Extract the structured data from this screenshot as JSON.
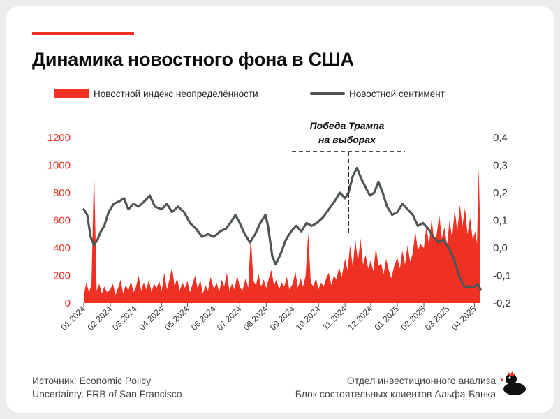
{
  "header": {
    "title": "Динамика новостного фона в США"
  },
  "legend": {
    "uncertainty_label": "Новостной индекс неопределённости",
    "sentiment_label": "Новостной сентимент"
  },
  "annotation": {
    "line1": "Победа Трампа",
    "line2": "на выборах"
  },
  "footer": {
    "source_line1": "Источник: Economic Policy",
    "source_line2": "Uncertainty, FRB of San Francisco",
    "dept_line1": "Отдел инвестиционного анализа",
    "dept_line2": "Блок состоятельных клиентов Альфа-Банка"
  },
  "colors": {
    "uncertainty": "#ef3124",
    "sentiment": "#4e5553",
    "accent": "#ef3124"
  },
  "chart_data": {
    "type": "area",
    "title": "Динамика новостного фона в США",
    "x_ticks": [
      "01.2024",
      "02.2024",
      "03.2024",
      "04.2024",
      "05.2024",
      "06.2024",
      "07.2024",
      "08.2024",
      "09.2024",
      "10.2024",
      "11.2024",
      "12.2024",
      "01.2025",
      "02.2025",
      "03.2025",
      "04.2025"
    ],
    "y_left": {
      "ticks": [
        "0",
        "200",
        "400",
        "600",
        "800",
        "1000",
        "1200"
      ],
      "range": [
        0,
        1200
      ]
    },
    "y_right": {
      "ticks": [
        "-0,2",
        "-0,1",
        "0,0",
        "0,1",
        "0,2",
        "0,3",
        "0,4"
      ],
      "range": [
        -0.2,
        0.4
      ]
    },
    "event": {
      "date": "2024-11-05",
      "label": "Победа Трампа на выборах"
    },
    "series": [
      {
        "name": "Новостной индекс неопределённости",
        "axis": "left",
        "style": "area",
        "points": [
          [
            "2024-01-01",
            60
          ],
          [
            "2024-01-04",
            150
          ],
          [
            "2024-01-07",
            80
          ],
          [
            "2024-01-10",
            130
          ],
          [
            "2024-01-13",
            980
          ],
          [
            "2024-01-16",
            90
          ],
          [
            "2024-01-19",
            140
          ],
          [
            "2024-01-22",
            70
          ],
          [
            "2024-01-25",
            120
          ],
          [
            "2024-01-28",
            80
          ],
          [
            "2024-02-01",
            100
          ],
          [
            "2024-02-04",
            140
          ],
          [
            "2024-02-07",
            60
          ],
          [
            "2024-02-10",
            110
          ],
          [
            "2024-02-13",
            170
          ],
          [
            "2024-02-16",
            70
          ],
          [
            "2024-02-19",
            130
          ],
          [
            "2024-02-22",
            90
          ],
          [
            "2024-02-25",
            160
          ],
          [
            "2024-02-28",
            80
          ],
          [
            "2024-03-02",
            120
          ],
          [
            "2024-03-05",
            200
          ],
          [
            "2024-03-08",
            90
          ],
          [
            "2024-03-11",
            150
          ],
          [
            "2024-03-14",
            100
          ],
          [
            "2024-03-17",
            170
          ],
          [
            "2024-03-20",
            80
          ],
          [
            "2024-03-23",
            140
          ],
          [
            "2024-03-26",
            110
          ],
          [
            "2024-03-29",
            160
          ],
          [
            "2024-04-01",
            90
          ],
          [
            "2024-04-04",
            220
          ],
          [
            "2024-04-07",
            100
          ],
          [
            "2024-04-10",
            170
          ],
          [
            "2024-04-13",
            260
          ],
          [
            "2024-04-16",
            120
          ],
          [
            "2024-04-19",
            180
          ],
          [
            "2024-04-22",
            90
          ],
          [
            "2024-04-25",
            150
          ],
          [
            "2024-04-28",
            110
          ],
          [
            "2024-05-01",
            160
          ],
          [
            "2024-05-04",
            80
          ],
          [
            "2024-05-07",
            140
          ],
          [
            "2024-05-10",
            200
          ],
          [
            "2024-05-13",
            100
          ],
          [
            "2024-05-16",
            170
          ],
          [
            "2024-05-19",
            70
          ],
          [
            "2024-05-22",
            130
          ],
          [
            "2024-05-25",
            90
          ],
          [
            "2024-05-28",
            190
          ],
          [
            "2024-06-01",
            100
          ],
          [
            "2024-06-04",
            150
          ],
          [
            "2024-06-07",
            80
          ],
          [
            "2024-06-10",
            170
          ],
          [
            "2024-06-13",
            120
          ],
          [
            "2024-06-16",
            220
          ],
          [
            "2024-06-19",
            90
          ],
          [
            "2024-06-22",
            140
          ],
          [
            "2024-06-25",
            100
          ],
          [
            "2024-06-28",
            200
          ],
          [
            "2024-07-01",
            120
          ],
          [
            "2024-07-04",
            90
          ],
          [
            "2024-07-08",
            180
          ],
          [
            "2024-07-11",
            110
          ],
          [
            "2024-07-14",
            490
          ],
          [
            "2024-07-17",
            160
          ],
          [
            "2024-07-20",
            130
          ],
          [
            "2024-07-23",
            210
          ],
          [
            "2024-07-26",
            120
          ],
          [
            "2024-07-29",
            170
          ],
          [
            "2024-08-01",
            110
          ],
          [
            "2024-08-04",
            180
          ],
          [
            "2024-08-07",
            240
          ],
          [
            "2024-08-10",
            130
          ],
          [
            "2024-08-13",
            170
          ],
          [
            "2024-08-16",
            100
          ],
          [
            "2024-08-19",
            150
          ],
          [
            "2024-08-22",
            120
          ],
          [
            "2024-08-25",
            190
          ],
          [
            "2024-08-28",
            100
          ],
          [
            "2024-09-01",
            140
          ],
          [
            "2024-09-04",
            230
          ],
          [
            "2024-09-07",
            110
          ],
          [
            "2024-09-10",
            180
          ],
          [
            "2024-09-13",
            120
          ],
          [
            "2024-09-16",
            200
          ],
          [
            "2024-09-19",
            510
          ],
          [
            "2024-09-22",
            150
          ],
          [
            "2024-09-25",
            120
          ],
          [
            "2024-09-28",
            180
          ],
          [
            "2024-10-01",
            100
          ],
          [
            "2024-10-04",
            150
          ],
          [
            "2024-10-07",
            120
          ],
          [
            "2024-10-10",
            180
          ],
          [
            "2024-10-13",
            220
          ],
          [
            "2024-10-16",
            130
          ],
          [
            "2024-10-19",
            200
          ],
          [
            "2024-10-22",
            170
          ],
          [
            "2024-10-25",
            260
          ],
          [
            "2024-10-28",
            190
          ],
          [
            "2024-11-01",
            320
          ],
          [
            "2024-11-04",
            240
          ],
          [
            "2024-11-07",
            420
          ],
          [
            "2024-11-10",
            260
          ],
          [
            "2024-11-13",
            460
          ],
          [
            "2024-11-16",
            300
          ],
          [
            "2024-11-19",
            470
          ],
          [
            "2024-11-22",
            280
          ],
          [
            "2024-11-25",
            350
          ],
          [
            "2024-11-28",
            250
          ],
          [
            "2024-12-01",
            310
          ],
          [
            "2024-12-04",
            230
          ],
          [
            "2024-12-07",
            400
          ],
          [
            "2024-12-10",
            270
          ],
          [
            "2024-12-13",
            290
          ],
          [
            "2024-12-16",
            210
          ],
          [
            "2024-12-19",
            320
          ],
          [
            "2024-12-22",
            240
          ],
          [
            "2024-12-25",
            180
          ],
          [
            "2024-12-28",
            260
          ],
          [
            "2025-01-01",
            330
          ],
          [
            "2025-01-04",
            250
          ],
          [
            "2025-01-07",
            380
          ],
          [
            "2025-01-10",
            280
          ],
          [
            "2025-01-13",
            420
          ],
          [
            "2025-01-16",
            300
          ],
          [
            "2025-01-19",
            360
          ],
          [
            "2025-01-22",
            520
          ],
          [
            "2025-01-25",
            380
          ],
          [
            "2025-01-28",
            430
          ],
          [
            "2025-02-01",
            400
          ],
          [
            "2025-02-04",
            560
          ],
          [
            "2025-02-07",
            420
          ],
          [
            "2025-02-10",
            610
          ],
          [
            "2025-02-13",
            450
          ],
          [
            "2025-02-16",
            500
          ],
          [
            "2025-02-19",
            640
          ],
          [
            "2025-02-22",
            470
          ],
          [
            "2025-02-25",
            550
          ],
          [
            "2025-02-28",
            420
          ],
          [
            "2025-03-03",
            600
          ],
          [
            "2025-03-06",
            470
          ],
          [
            "2025-03-09",
            680
          ],
          [
            "2025-03-12",
            520
          ],
          [
            "2025-03-15",
            710
          ],
          [
            "2025-03-18",
            560
          ],
          [
            "2025-03-21",
            690
          ],
          [
            "2025-03-24",
            500
          ],
          [
            "2025-03-27",
            620
          ],
          [
            "2025-03-30",
            460
          ],
          [
            "2025-04-02",
            520
          ],
          [
            "2025-04-04",
            430
          ],
          [
            "2025-04-06",
            980
          ],
          [
            "2025-04-08",
            470
          ]
        ]
      },
      {
        "name": "Новостной сентимент",
        "axis": "right",
        "style": "line",
        "points": [
          [
            "2024-01-01",
            0.14
          ],
          [
            "2024-01-05",
            0.12
          ],
          [
            "2024-01-09",
            0.04
          ],
          [
            "2024-01-13",
            0.01
          ],
          [
            "2024-01-17",
            0.03
          ],
          [
            "2024-01-21",
            0.06
          ],
          [
            "2024-01-25",
            0.08
          ],
          [
            "2024-01-30",
            0.13
          ],
          [
            "2024-02-05",
            0.16
          ],
          [
            "2024-02-12",
            0.17
          ],
          [
            "2024-02-17",
            0.18
          ],
          [
            "2024-02-22",
            0.14
          ],
          [
            "2024-02-28",
            0.16
          ],
          [
            "2024-03-05",
            0.15
          ],
          [
            "2024-03-12",
            0.17
          ],
          [
            "2024-03-18",
            0.19
          ],
          [
            "2024-03-24",
            0.15
          ],
          [
            "2024-04-01",
            0.14
          ],
          [
            "2024-04-07",
            0.16
          ],
          [
            "2024-04-13",
            0.13
          ],
          [
            "2024-04-20",
            0.15
          ],
          [
            "2024-04-27",
            0.13
          ],
          [
            "2024-05-04",
            0.09
          ],
          [
            "2024-05-11",
            0.07
          ],
          [
            "2024-05-18",
            0.04
          ],
          [
            "2024-05-25",
            0.05
          ],
          [
            "2024-06-01",
            0.04
          ],
          [
            "2024-06-08",
            0.06
          ],
          [
            "2024-06-15",
            0.07
          ],
          [
            "2024-06-20",
            0.09
          ],
          [
            "2024-06-26",
            0.12
          ],
          [
            "2024-07-01",
            0.09
          ],
          [
            "2024-07-07",
            0.05
          ],
          [
            "2024-07-13",
            0.02
          ],
          [
            "2024-07-19",
            0.05
          ],
          [
            "2024-07-25",
            0.09
          ],
          [
            "2024-07-31",
            0.12
          ],
          [
            "2024-08-03",
            0.08
          ],
          [
            "2024-08-08",
            -0.03
          ],
          [
            "2024-08-12",
            -0.06
          ],
          [
            "2024-08-18",
            -0.02
          ],
          [
            "2024-08-24",
            0.03
          ],
          [
            "2024-08-30",
            0.06
          ],
          [
            "2024-09-05",
            0.08
          ],
          [
            "2024-09-11",
            0.06
          ],
          [
            "2024-09-17",
            0.09
          ],
          [
            "2024-09-23",
            0.08
          ],
          [
            "2024-09-29",
            0.09
          ],
          [
            "2024-10-06",
            0.11
          ],
          [
            "2024-10-13",
            0.14
          ],
          [
            "2024-10-20",
            0.17
          ],
          [
            "2024-10-26",
            0.2
          ],
          [
            "2024-11-01",
            0.18
          ],
          [
            "2024-11-05",
            0.2
          ],
          [
            "2024-11-10",
            0.26
          ],
          [
            "2024-11-15",
            0.29
          ],
          [
            "2024-11-20",
            0.25
          ],
          [
            "2024-11-25",
            0.22
          ],
          [
            "2024-11-30",
            0.19
          ],
          [
            "2024-12-05",
            0.2
          ],
          [
            "2024-12-10",
            0.24
          ],
          [
            "2024-12-15",
            0.2
          ],
          [
            "2024-12-20",
            0.15
          ],
          [
            "2024-12-26",
            0.12
          ],
          [
            "2025-01-01",
            0.13
          ],
          [
            "2025-01-07",
            0.16
          ],
          [
            "2025-01-13",
            0.14
          ],
          [
            "2025-01-19",
            0.12
          ],
          [
            "2025-01-25",
            0.08
          ],
          [
            "2025-01-31",
            0.09
          ],
          [
            "2025-02-06",
            0.07
          ],
          [
            "2025-02-12",
            0.04
          ],
          [
            "2025-02-18",
            0.02
          ],
          [
            "2025-02-24",
            0.03
          ],
          [
            "2025-03-02",
            0.0
          ],
          [
            "2025-03-08",
            -0.04
          ],
          [
            "2025-03-14",
            -0.1
          ],
          [
            "2025-03-20",
            -0.14
          ],
          [
            "2025-03-26",
            -0.14
          ],
          [
            "2025-04-01",
            -0.14
          ],
          [
            "2025-04-05",
            -0.13
          ],
          [
            "2025-04-08",
            -0.15
          ]
        ]
      }
    ]
  }
}
